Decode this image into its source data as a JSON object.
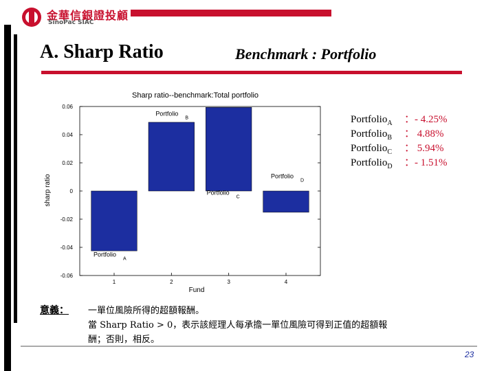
{
  "header": {
    "company_name_cn": "金華信銀證投顧",
    "company_name_en": "SinoPac SIAC"
  },
  "slide": {
    "title": "A. Sharp Ratio",
    "subtitle": "Benchmark : Portfolio",
    "page_number": "23"
  },
  "colors": {
    "accent": "#c8102e",
    "bar": "#1c2ea0"
  },
  "chart_data": {
    "type": "bar",
    "title": "Sharp ratio--benchmark:Total portfolio",
    "xlabel": "Fund",
    "ylabel": "sharp ratio",
    "categories": [
      "1",
      "2",
      "3",
      "4"
    ],
    "values": [
      -0.0425,
      0.0488,
      0.0594,
      -0.0151
    ],
    "ylim": [
      -0.06,
      0.06
    ],
    "yticks": [
      "0.06",
      "0.04",
      "0.02",
      "0",
      "-0.02",
      "-0.04",
      "-0.06"
    ],
    "bar_labels": [
      {
        "text": "Portfolio",
        "sub": "A"
      },
      {
        "text": "Portfolio",
        "sub": "B"
      },
      {
        "text": "Portfolio",
        "sub": "C"
      },
      {
        "text": "Portfolio",
        "sub": "D"
      }
    ]
  },
  "legend": [
    {
      "name": "Portfolio",
      "sub": "A",
      "value": "：- 4.25%"
    },
    {
      "name": "Portfolio",
      "sub": "B",
      "value": "：  4.88%"
    },
    {
      "name": "Portfolio",
      "sub": "C",
      "value": "：  5.94%"
    },
    {
      "name": "Portfolio",
      "sub": "D",
      "value": "：- 1.51%"
    }
  ],
  "meaning": {
    "label": "意義：",
    "line1": "一單位風險所得的超額報酬。",
    "line2": "當 Sharp Ratio > 0，表示該經理人每承擔一單位風險可得到正值的超額報",
    "line3": "酬；否則，相反。"
  }
}
